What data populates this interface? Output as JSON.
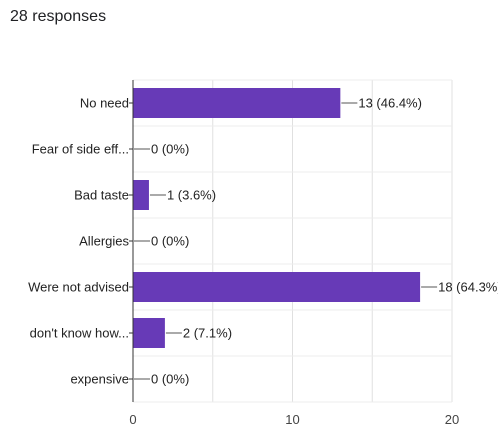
{
  "header": {
    "responses_text": "28 responses"
  },
  "chart_data": {
    "type": "bar",
    "orientation": "horizontal",
    "categories": [
      "No need",
      "Fear of side eff...",
      "Bad taste",
      "Allergies",
      "Were not advised",
      "don't know how...",
      "expensive"
    ],
    "values": [
      13,
      0,
      1,
      0,
      18,
      2,
      0
    ],
    "data_labels": [
      "13 (46.4%)",
      "0 (0%)",
      "1 (3.6%)",
      "0 (0%)",
      "18 (64.3%)",
      "2 (7.1%)",
      "0 (0%)"
    ],
    "xlim": [
      0,
      20
    ],
    "xticks": [
      0,
      10,
      20
    ],
    "grid": true,
    "color": "#673ab7"
  }
}
